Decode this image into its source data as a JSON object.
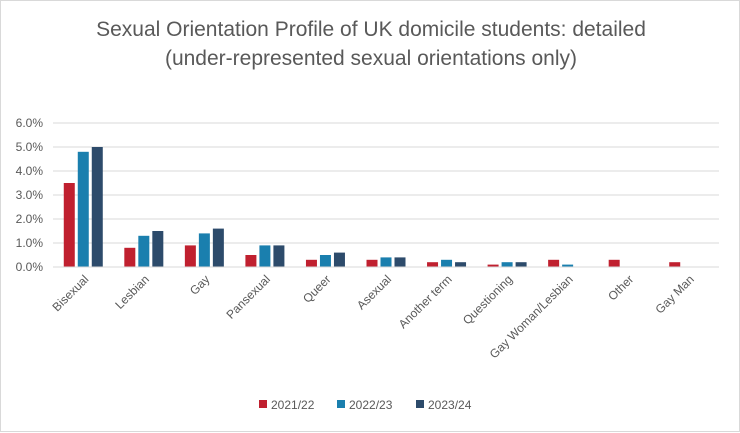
{
  "chart_data": {
    "type": "bar",
    "title": [
      "Sexual Orientation Profile of UK domicile students: detailed",
      "(under-represented sexual orientations only)"
    ],
    "xlabel": "",
    "ylabel": "",
    "ylim": [
      0,
      6
    ],
    "y_ticks": [
      0,
      1,
      2,
      3,
      4,
      5,
      6
    ],
    "y_tick_labels": [
      "0.0%",
      "1.0%",
      "2.0%",
      "3.0%",
      "4.0%",
      "5.0%",
      "6.0%"
    ],
    "grid": true,
    "legend_position": "bottom",
    "categories": [
      "Bisexual",
      "Lesbian",
      "Gay",
      "Pansexual",
      "Queer",
      "Asexual",
      "Another term",
      "Questioning",
      "Gay Woman/Lesbian",
      "Other",
      "Gay Man"
    ],
    "series": [
      {
        "name": "2021/22",
        "color": "#c0202f",
        "values": [
          3.5,
          0.8,
          0.9,
          0.5,
          0.3,
          0.3,
          0.2,
          0.1,
          0.3,
          0.3,
          0.2
        ]
      },
      {
        "name": "2022/23",
        "color": "#1a7fae",
        "values": [
          4.8,
          1.3,
          1.4,
          0.9,
          0.5,
          0.4,
          0.3,
          0.2,
          0.1,
          0,
          0
        ]
      },
      {
        "name": "2023/24",
        "color": "#2d4b6b",
        "values": [
          5.0,
          1.5,
          1.6,
          0.9,
          0.6,
          0.4,
          0.2,
          0.2,
          0,
          0,
          0
        ]
      }
    ]
  }
}
